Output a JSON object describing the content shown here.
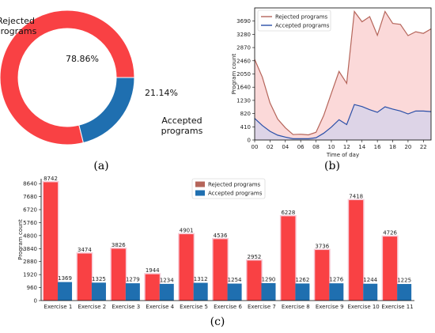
{
  "chart_data": [
    {
      "type": "pie",
      "panel_label": "(a)",
      "donut": true,
      "slices": [
        {
          "label": "Rejected programs",
          "value": 78.86,
          "value_label": "78.86%",
          "color": "#f94144"
        },
        {
          "label": "Accepted programs",
          "value": 21.14,
          "value_label": "21.14%",
          "color": "#1f6fb0"
        }
      ]
    },
    {
      "type": "area",
      "panel_label": "(b)",
      "xlabel": "Time of day",
      "ylabel": "Program count",
      "xlim": [
        0,
        23
      ],
      "ylim": [
        0,
        4100
      ],
      "x_ticks": [
        "00",
        "02",
        "04",
        "06",
        "08",
        "10",
        "12",
        "14",
        "16",
        "18",
        "20",
        "22"
      ],
      "y_ticks": [
        "0",
        "410",
        "820",
        "1230",
        "1640",
        "2050",
        "2460",
        "2870",
        "3280",
        "3690"
      ],
      "legend_position": "top-left",
      "x": [
        0,
        1,
        2,
        3,
        4,
        5,
        6,
        7,
        8,
        9,
        10,
        11,
        12,
        13,
        14,
        15,
        16,
        17,
        18,
        19,
        20,
        21,
        22,
        23
      ],
      "series": [
        {
          "name": "Rejected programs",
          "color": "#b5655a",
          "fill": "#fbd5d5",
          "values": [
            2500,
            1950,
            1150,
            650,
            380,
            170,
            180,
            160,
            240,
            760,
            1450,
            2130,
            1760,
            3990,
            3670,
            3830,
            3250,
            3990,
            3620,
            3590,
            3240,
            3360,
            3310,
            3450
          ]
        },
        {
          "name": "Accepted programs",
          "color": "#2a4fa8",
          "fill": "#d9d3e8",
          "values": [
            670,
            450,
            270,
            150,
            90,
            40,
            40,
            40,
            70,
            210,
            400,
            630,
            480,
            1100,
            1040,
            940,
            860,
            1030,
            960,
            900,
            810,
            900,
            900,
            880
          ]
        }
      ]
    },
    {
      "type": "bar",
      "panel_label": "(c)",
      "ylabel": "Program count",
      "ylim": [
        0,
        9000
      ],
      "y_ticks": [
        "0",
        "960",
        "1920",
        "2880",
        "3840",
        "4800",
        "5760",
        "6720",
        "7680",
        "8640"
      ],
      "legend_position": "top-center",
      "categories": [
        "Exercise 1",
        "Exercise 2",
        "Exercise 3",
        "Exercise 4",
        "Exercise 5",
        "Exercise 6",
        "Exercise 7",
        "Exercise 8",
        "Exercise 9",
        "Exercise 10",
        "Exercise 11"
      ],
      "series": [
        {
          "name": "Rejected programs",
          "color": "#f94144",
          "legend_color": "#b5655a",
          "values": [
            8742,
            3474,
            3826,
            1944,
            4901,
            4536,
            2952,
            6228,
            3736,
            7418,
            4726
          ]
        },
        {
          "name": "Accepted programs",
          "color": "#1f6fb0",
          "values": [
            1369,
            1325,
            1279,
            1234,
            1312,
            1254,
            1290,
            1262,
            1276,
            1244,
            1225
          ]
        }
      ]
    }
  ]
}
